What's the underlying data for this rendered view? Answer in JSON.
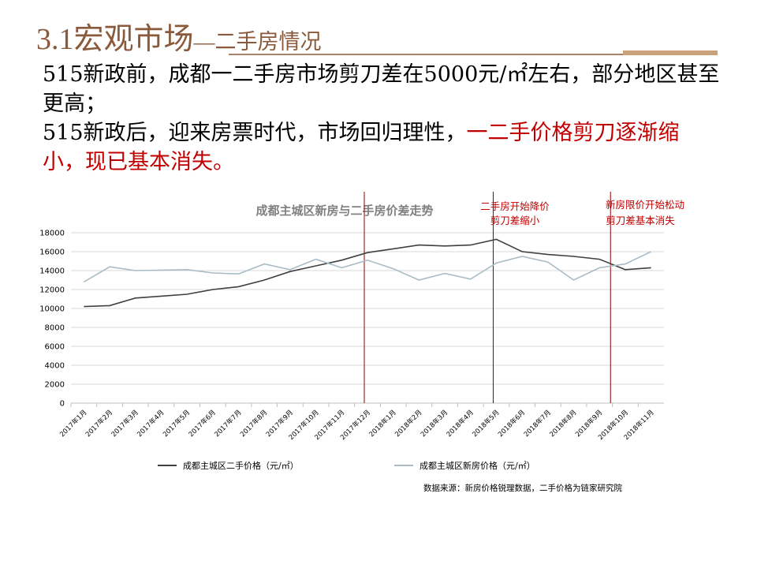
{
  "slide": {
    "title_main": "3.1宏观市场",
    "title_sub": "—二手房情况",
    "paragraphs": [
      {
        "text": "515新政前，成都一二手房市场剪刀差在5000元/㎡左右，部分地区甚至更高；"
      },
      {
        "text": "515新政后，迎来房票时代，市场回归理性，",
        "highlight": "一二手价格剪刀逐渐缩小，现已基本消失。"
      }
    ],
    "source": "数据来源：新房价格锐理数据，二手价格为链家研究院"
  },
  "chart_data": {
    "type": "line",
    "title": "成都主城区新房与二手房价差走势",
    "categories": [
      "2017年1月",
      "2017年2月",
      "2017年3月",
      "2017年4月",
      "2017年5月",
      "2017年6月",
      "2017年7月",
      "2017年8月",
      "2017年9月",
      "2017年10月",
      "2017年11月",
      "2017年12月",
      "2018年1月",
      "2018年2月",
      "2018年3月",
      "2018年4月",
      "2018年5月",
      "2018年6月",
      "2018年7月",
      "2018年8月",
      "2018年9月",
      "2018年10月",
      "2018年11月"
    ],
    "series": [
      {
        "name": "成都主城区二手价格（元/㎡）",
        "color": "#404040",
        "values": [
          10200,
          10300,
          11100,
          11300,
          11500,
          12000,
          12300,
          13000,
          13900,
          14500,
          15100,
          15900,
          16300,
          16700,
          16600,
          16700,
          17300,
          16000,
          15700,
          15500,
          15200,
          14100,
          14300
        ]
      },
      {
        "name": "成都主城区新房价格（元/㎡）",
        "color": "#a9bcc6",
        "values": [
          12800,
          14400,
          14000,
          14050,
          14100,
          13750,
          13650,
          14700,
          14100,
          15200,
          14300,
          15100,
          14200,
          13000,
          13700,
          13100,
          14800,
          15500,
          14900,
          13000,
          14300,
          14700,
          16000
        ]
      }
    ],
    "ylim": [
      0,
      18000
    ],
    "yticks": [
      0,
      2000,
      4000,
      6000,
      8000,
      10000,
      12000,
      14000,
      16000,
      18000
    ],
    "grid": true,
    "legend": "bottom",
    "annotations": [
      "二手房开始降价",
      "剪刀差缩小",
      "新房限价开始松动",
      "剪刀差基本消失"
    ]
  }
}
